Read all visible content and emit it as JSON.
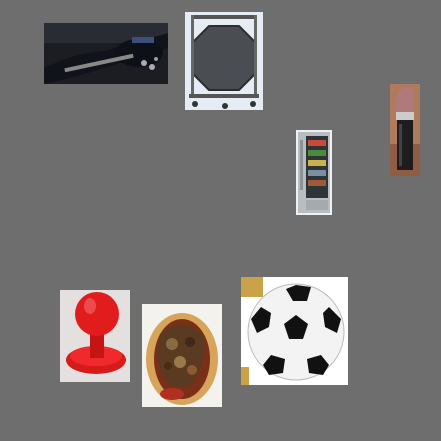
{
  "background": "#6e6e6e",
  "items": [
    {
      "name": "guitar-photo"
    },
    {
      "name": "octagonal-screen-on-cart-photo"
    },
    {
      "name": "lipstick-photo"
    },
    {
      "name": "refrigerator-photo"
    },
    {
      "name": "plunger-stamp-photo"
    },
    {
      "name": "hot-dog-photo"
    },
    {
      "name": "soccer-ball-photo"
    }
  ]
}
